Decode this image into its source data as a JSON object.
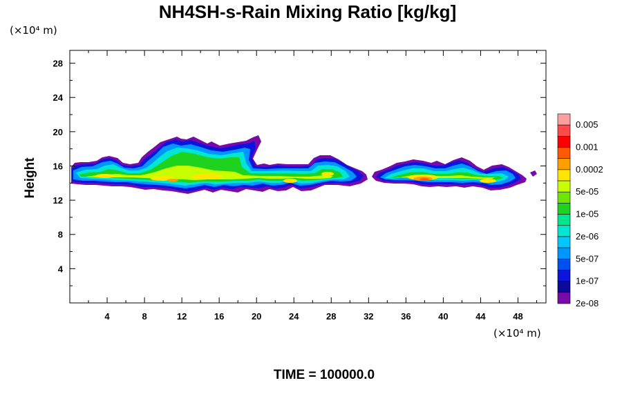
{
  "chart_data": {
    "type": "heatmap",
    "title": "NH4SH-s-Rain Mixing Ratio [kg/kg]",
    "xlabel": "",
    "ylabel": "Height",
    "x_unit": "(×10⁴ m)",
    "y_unit": "(×10⁴ m)",
    "xlim": [
      0,
      51
    ],
    "ylim": [
      0,
      29.5
    ],
    "x_ticks": [
      4,
      8,
      12,
      16,
      20,
      24,
      28,
      32,
      36,
      40,
      44,
      48
    ],
    "x_tick_labels": [
      "4",
      "8",
      "12",
      "16",
      "20",
      "24",
      "28",
      "32",
      "36",
      "40",
      "44",
      "48"
    ],
    "y_ticks": [
      4,
      8,
      12,
      16,
      20,
      24,
      28
    ],
    "y_tick_labels": [
      "4",
      "8",
      "12",
      "16",
      "20",
      "24",
      "28"
    ],
    "grid": false,
    "annotation": "TIME = 100000.0",
    "colorbar": {
      "placement": "right",
      "labels": [
        "0.005",
        "0.001",
        "0.0002",
        "5e-05",
        "1e-05",
        "2e-06",
        "5e-07",
        "1e-07",
        "2e-08"
      ],
      "colors_top_to_bottom": [
        "#ff9ea0",
        "#ff4a4a",
        "#ff0000",
        "#ff5a00",
        "#ffa000",
        "#ffe600",
        "#c8ff00",
        "#6ee600",
        "#1ed21e",
        "#00e68c",
        "#00e6d2",
        "#00c8ff",
        "#0096ff",
        "#0050f0",
        "#0a14dc",
        "#0a0a9b",
        "#780aaa"
      ]
    },
    "layers_km_x10e4": [
      {
        "x": [
          0.0,
          14.5
        ],
        "y": [
          13.5,
          16.2
        ],
        "peak": "2e-05",
        "note": "left cloud band"
      },
      {
        "x": [
          10.0,
          21.5
        ],
        "y": [
          13.2,
          19.6
        ],
        "peak": "0.0002"
      },
      {
        "x": [
          21.5,
          26.0
        ],
        "y": [
          13.4,
          15.8
        ],
        "peak": "5e-05"
      },
      {
        "x": [
          26.0,
          32.0
        ],
        "y": [
          13.5,
          17.3
        ],
        "peak": "5e-05"
      },
      {
        "x": [
          32.0,
          50.0
        ],
        "y": [
          13.3,
          17.2
        ],
        "peak": "0.001"
      }
    ]
  }
}
